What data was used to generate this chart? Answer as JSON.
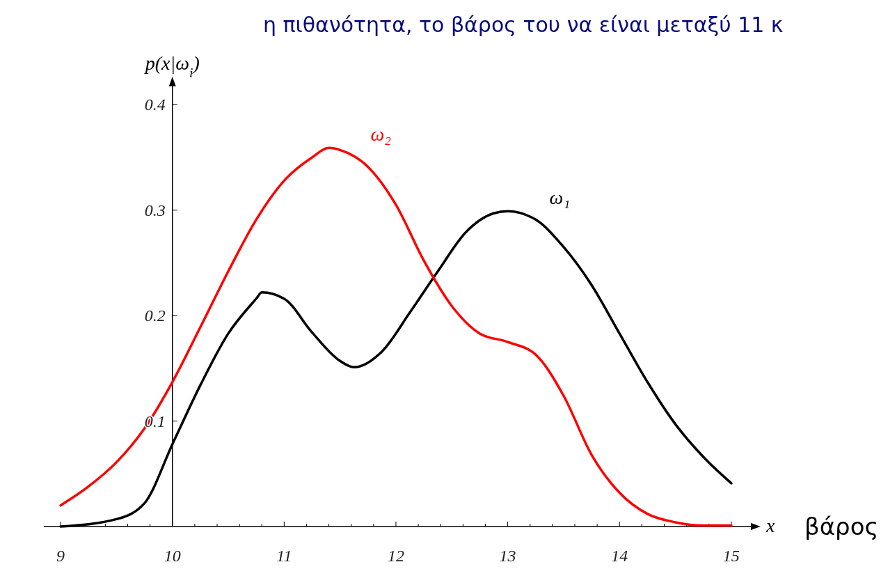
{
  "chart_data": {
    "type": "line",
    "xlabel": "x",
    "ylabel": "p(x|ω$_{i}$)",
    "xlim": [
      8.85,
      15.2
    ],
    "ylim": [
      0,
      0.42
    ],
    "xticks": [
      9,
      {
        "value": 9.2,
        "label": null
      },
      {
        "value": 9.4,
        "label": null
      },
      {
        "value": 9.6,
        "label": null
      },
      {
        "value": 9.8,
        "label": null
      },
      10,
      {
        "value": 10.2,
        "label": null
      },
      {
        "value": 10.4,
        "label": null
      },
      {
        "value": 10.6,
        "label": null
      },
      {
        "value": 10.8,
        "label": null
      },
      11,
      {
        "value": 11.2,
        "label": null
      },
      {
        "value": 11.4,
        "label": null
      },
      {
        "value": 11.6,
        "label": null
      },
      {
        "value": 11.8,
        "label": null
      },
      12,
      {
        "value": 12.2,
        "label": null
      },
      {
        "value": 12.4,
        "label": null
      },
      {
        "value": 12.6,
        "label": null
      },
      {
        "value": 12.8,
        "label": null
      },
      13,
      {
        "value": 13.2,
        "label": null
      },
      {
        "value": 13.4,
        "label": null
      },
      {
        "value": 13.6,
        "label": null
      },
      {
        "value": 13.8,
        "label": null
      },
      14,
      {
        "value": 14.2,
        "label": null
      },
      {
        "value": 14.4,
        "label": null
      },
      {
        "value": 14.6,
        "label": null
      },
      {
        "value": 14.8,
        "label": null
      },
      15
    ],
    "yticks": [
      0.1,
      0.2,
      0.3,
      0.4
    ],
    "grid": false,
    "marker": "none",
    "line_style": "solid",
    "annotations": [
      "η πιθανότητα, το βάρος του να είναι μεταξύ 11 κ",
      "βάρος"
    ],
    "series": [
      {
        "name": "ω₁",
        "color": "#000000",
        "x": [
          9,
          9.5,
          9.75,
          10,
          10.25,
          10.5,
          10.75,
          10.8,
          11,
          11.25,
          11.5,
          11.625,
          11.875,
          12.125,
          12.375,
          12.625,
          12.875,
          13,
          13.25,
          13.5,
          13.75,
          14,
          14.25,
          14.5,
          14.75,
          15
        ],
        "values": [
          0.0,
          0.007,
          0.022,
          0.078,
          0.134,
          0.183,
          0.216,
          0.222,
          0.216,
          0.184,
          0.157,
          0.151,
          0.166,
          0.203,
          0.242,
          0.279,
          0.297,
          0.299,
          0.291,
          0.265,
          0.229,
          0.183,
          0.137,
          0.097,
          0.066,
          0.041
        ]
      },
      {
        "name": "ω₂",
        "color": "#ff0000",
        "x": [
          9,
          9.25,
          9.5,
          9.75,
          10,
          10.25,
          10.5,
          10.75,
          11,
          11.25,
          11.4,
          11.5,
          11.75,
          12,
          12.25,
          12.5,
          12.75,
          13,
          13.25,
          13.5,
          13.75,
          14,
          14.25,
          14.5,
          14.75,
          15
        ],
        "values": [
          0.02,
          0.038,
          0.061,
          0.093,
          0.137,
          0.189,
          0.242,
          0.291,
          0.328,
          0.35,
          0.359,
          0.357,
          0.341,
          0.305,
          0.252,
          0.209,
          0.183,
          0.175,
          0.163,
          0.124,
          0.068,
          0.032,
          0.012,
          0.004,
          0.001,
          0.001
        ]
      }
    ]
  }
}
